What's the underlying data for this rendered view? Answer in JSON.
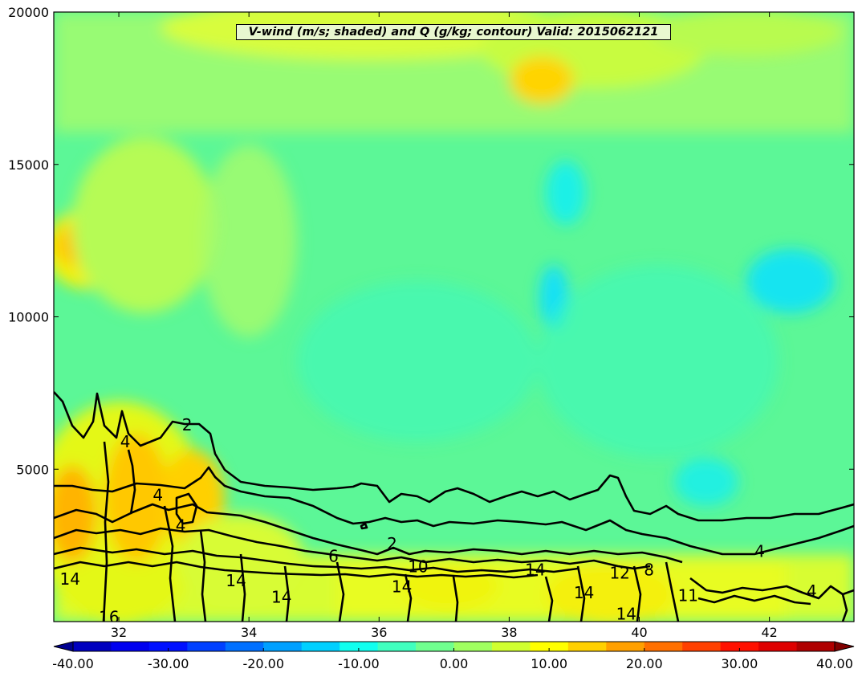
{
  "chart_data": {
    "type": "heatmap",
    "title": "V-wind (m/s; shaded) and Q (g/kg; contour) Valid: 2015062121",
    "xlabel": "",
    "ylabel": "",
    "xlim": [
      31,
      43.3
    ],
    "ylim": [
      0,
      20000
    ],
    "x_ticks": [
      "32",
      "34",
      "36",
      "38",
      "40",
      "42"
    ],
    "y_ticks": [
      "20000",
      "15000",
      "10000",
      "5000"
    ],
    "colorbar": {
      "min": -40,
      "max": 40,
      "step": 5,
      "tick_labels": [
        "-40.00",
        "-30.00",
        "-20.00",
        "-10.00",
        "0.00",
        "10.00",
        "20.00",
        "30.00",
        "40.00"
      ],
      "colors": [
        "#00008f",
        "#0000bf",
        "#0000ef",
        "#0010ff",
        "#0040ff",
        "#0070ff",
        "#00a0ff",
        "#00d0ff",
        "#10ffef",
        "#40ffbf",
        "#70ff8f",
        "#a0ff60",
        "#d0ff30",
        "#ffff00",
        "#ffd000",
        "#ffa000",
        "#ff7000",
        "#ff4000",
        "#ff1000",
        "#df0000",
        "#af0000",
        "#800000"
      ]
    },
    "contour_labels": [
      {
        "text": "2",
        "x": 33.05,
        "y": 6450
      },
      {
        "text": "4",
        "x": 32.1,
        "y": 5900
      },
      {
        "text": "4",
        "x": 32.6,
        "y": 4150
      },
      {
        "text": "4",
        "x": 32.95,
        "y": 3150
      },
      {
        "text": "6",
        "x": 35.3,
        "y": 2150
      },
      {
        "text": "2",
        "x": 36.2,
        "y": 2550
      },
      {
        "text": "10",
        "x": 36.6,
        "y": 1800
      },
      {
        "text": "14",
        "x": 36.35,
        "y": 1150
      },
      {
        "text": "14",
        "x": 31.25,
        "y": 1400
      },
      {
        "text": "14",
        "x": 33.8,
        "y": 1350
      },
      {
        "text": "14",
        "x": 34.5,
        "y": 800
      },
      {
        "text": "16",
        "x": 31.85,
        "y": 150
      },
      {
        "text": "14",
        "x": 38.4,
        "y": 1700
      },
      {
        "text": "12",
        "x": 39.7,
        "y": 1600
      },
      {
        "text": "8",
        "x": 40.15,
        "y": 1700
      },
      {
        "text": "4",
        "x": 41.85,
        "y": 2300
      },
      {
        "text": "14",
        "x": 39.15,
        "y": 950
      },
      {
        "text": "14",
        "x": 39.8,
        "y": 250
      },
      {
        "text": "4",
        "x": 42.65,
        "y": 1000
      },
      {
        "text": "11",
        "x": 40.75,
        "y": 850
      }
    ]
  }
}
